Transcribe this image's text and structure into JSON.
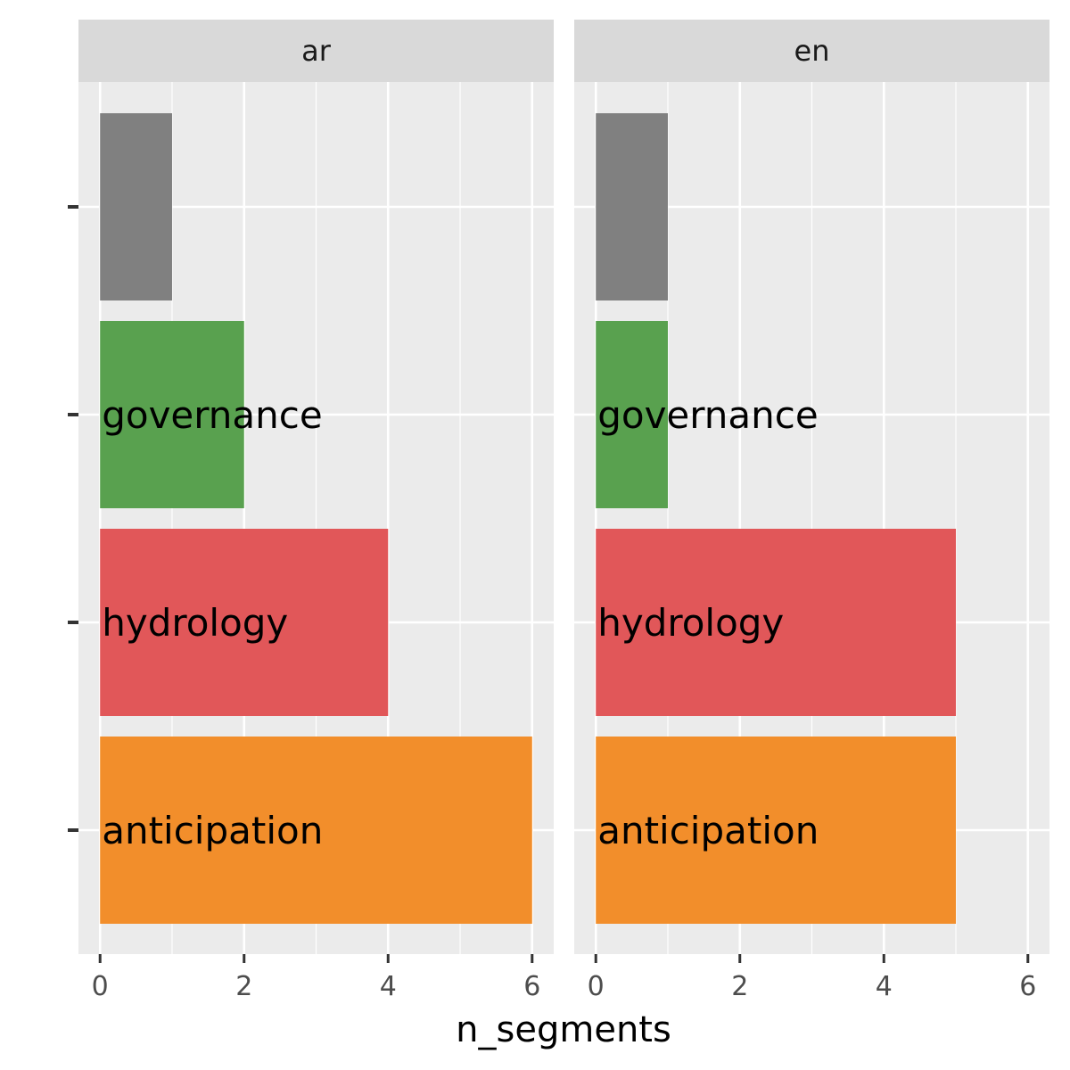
{
  "chart_data": {
    "type": "bar",
    "orientation": "horizontal",
    "xlabel": "n_segments",
    "ylabel": "",
    "xlim": [
      -0.3,
      6.3
    ],
    "x_ticks": [
      0,
      2,
      4,
      6
    ],
    "x_minor_ticks": [
      1,
      3,
      5
    ],
    "grid": true,
    "categories": [
      "",
      "governance",
      "hydrology",
      "anticipation"
    ],
    "colors": {
      "": "#808080",
      "governance": "#59A14F",
      "hydrology": "#E15759",
      "anticipation": "#F28E2B"
    },
    "panels": [
      {
        "label": "ar",
        "values": [
          1,
          2,
          4,
          6
        ]
      },
      {
        "label": "en",
        "values": [
          1,
          1,
          5,
          5
        ]
      }
    ]
  }
}
